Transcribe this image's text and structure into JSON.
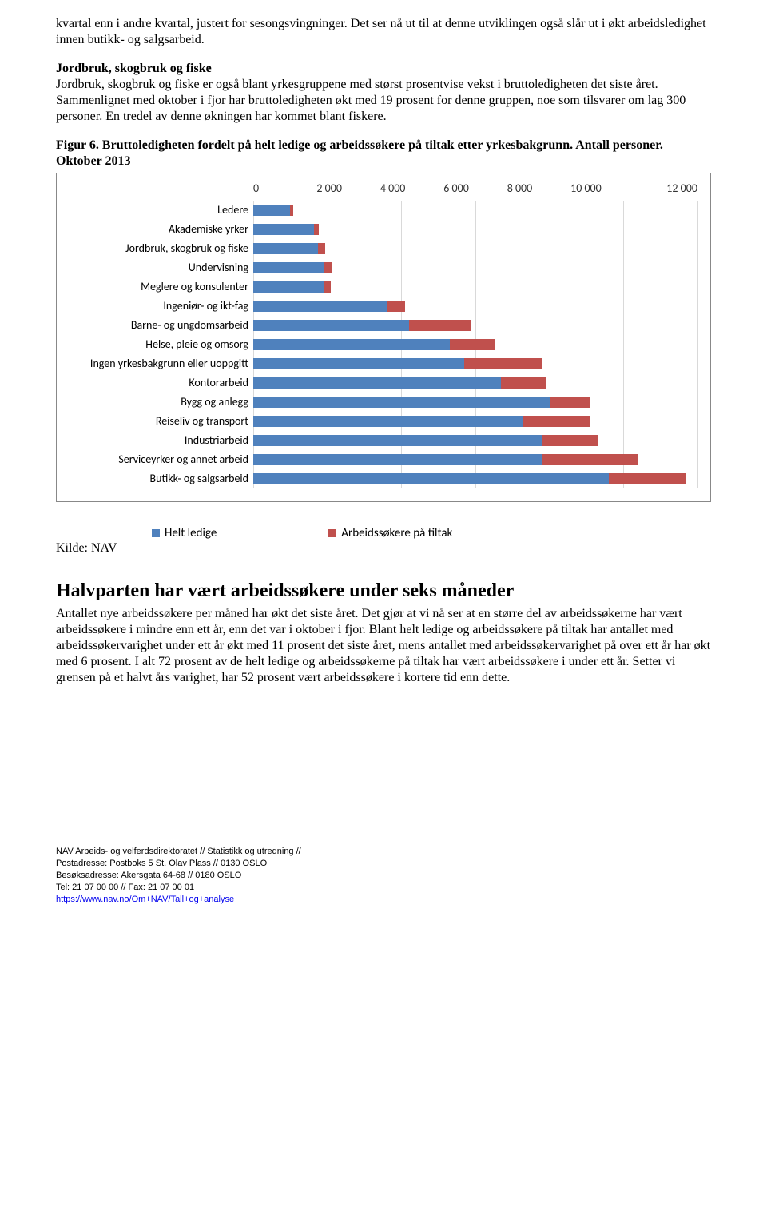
{
  "intro_para": "kvartal enn i andre kvartal, justert for sesongsvingninger. Det ser nå ut til at denne utviklingen også slår ut i økt arbeidsledighet innen butikk- og salgsarbeid.",
  "section1": {
    "heading": "Jordbruk, skogbruk og fiske",
    "body": "Jordbruk, skogbruk og fiske er også blant yrkesgruppene med størst prosentvise vekst i bruttoledigheten det siste året. Sammenlignet med oktober i fjor har bruttoledigheten økt med 19 prosent for denne gruppen, noe som tilsvarer om lag 300 personer. En tredel av denne økningen har kommet blant fiskere."
  },
  "figure": {
    "caption": "Figur 6. Bruttoledigheten fordelt på helt ledige og arbeidssøkere på tiltak etter yrkesbakgrunn. Antall personer. Oktober 2013",
    "xmax": 12000,
    "xtick_step": 2000,
    "xtick_labels": [
      "0",
      "2 000",
      "4 000",
      "6 000",
      "8 000",
      "10 000",
      "12 000"
    ],
    "series_colors": {
      "helt_ledige": "#4f81bd",
      "tiltak": "#c0504d"
    },
    "grid_color": "#d9d9d9",
    "legend": {
      "s1": "Helt ledige",
      "s2": "Arbeidssøkere på tiltak"
    },
    "categories": [
      {
        "label": "Ledere",
        "v1": 1000,
        "v2": 90
      },
      {
        "label": "Akademiske yrker",
        "v1": 1650,
        "v2": 120
      },
      {
        "label": "Jordbruk, skogbruk og fiske",
        "v1": 1750,
        "v2": 200
      },
      {
        "label": "Undervisning",
        "v1": 1900,
        "v2": 220
      },
      {
        "label": "Meglere og konsulenter",
        "v1": 1900,
        "v2": 200
      },
      {
        "label": "Ingeniør- og ikt-fag",
        "v1": 3600,
        "v2": 500
      },
      {
        "label": "Barne- og ungdomsarbeid",
        "v1": 4200,
        "v2": 1700
      },
      {
        "label": "Helse, pleie og omsorg",
        "v1": 5300,
        "v2": 1250
      },
      {
        "label": "Ingen yrkesbakgrunn eller uoppgitt",
        "v1": 5700,
        "v2": 2100
      },
      {
        "label": "Kontorarbeid",
        "v1": 6700,
        "v2": 1200
      },
      {
        "label": "Bygg og anlegg",
        "v1": 8000,
        "v2": 1100
      },
      {
        "label": "Reiseliv og transport",
        "v1": 7300,
        "v2": 1800
      },
      {
        "label": "Industriarbeid",
        "v1": 7800,
        "v2": 1500
      },
      {
        "label": "Serviceyrker og annet arbeid",
        "v1": 7800,
        "v2": 2600
      },
      {
        "label": "Butikk- og salgsarbeid",
        "v1": 9600,
        "v2": 2100
      }
    ]
  },
  "kilde": "Kilde: NAV",
  "section2": {
    "heading": "Halvparten har vært arbeidssøkere under seks måneder",
    "body": "Antallet nye arbeidssøkere per måned har økt det siste året. Det gjør at vi nå ser at en større del av arbeidssøkerne har vært arbeidssøkere i mindre enn ett år, enn det var i oktober i fjor. Blant helt ledige og arbeidssøkere på tiltak har antallet med arbeidssøkervarighet under ett år økt med 11 prosent det siste året, mens antallet med arbeidssøkervarighet på over ett år har økt med 6 prosent. I alt 72 prosent av de helt ledige og arbeidssøkerne på tiltak har vært arbeidssøkere i under ett år. Setter vi grensen på et halvt års varighet, har 52 prosent vært arbeidssøkere i kortere tid enn dette."
  },
  "footer": {
    "l1": "NAV Arbeids- og velferdsdirektoratet // Statistikk og utredning //",
    "l2": "Postadresse: Postboks 5 St. Olav Plass // 0130 OSLO",
    "l3": "Besøksadresse: Akersgata 64-68 // 0180 OSLO",
    "l4": "Tel: 21 07 00 00 // Fax: 21 07 00 01",
    "l5": "https://www.nav.no/Om+NAV/Tall+og+analyse"
  }
}
